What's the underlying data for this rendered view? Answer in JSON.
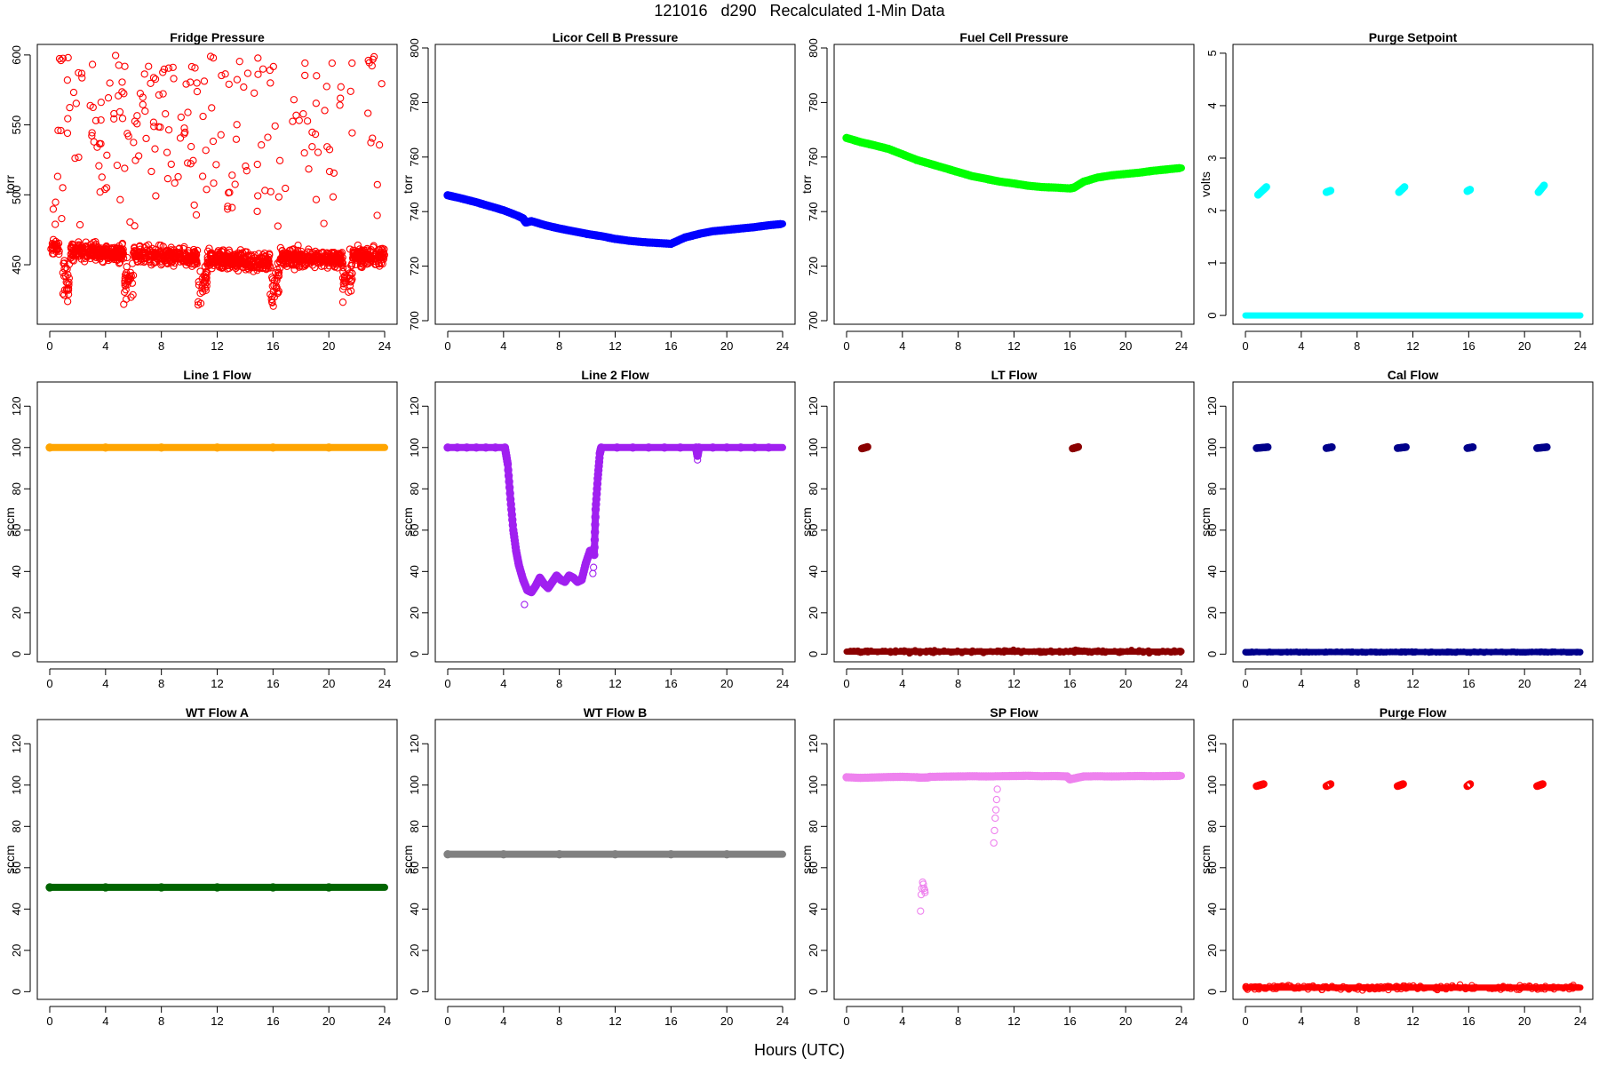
{
  "title": "121016   d290   Recalculated 1-Min Data",
  "xlabel": "Hours (UTC)",
  "chart_data": [
    {
      "id": "fridge-pressure",
      "type": "scatter",
      "title": "Fridge Pressure",
      "ylabel": "torr",
      "color": "#ff0000",
      "marker": "open",
      "xlim": [
        0,
        24
      ],
      "ylim": [
        410,
        605
      ],
      "xticks": [
        0,
        4,
        8,
        12,
        16,
        20,
        24
      ],
      "yticks": [
        450,
        500,
        550,
        600
      ],
      "segments": [
        {
          "x0": 0.0,
          "x1": 0.8,
          "y0": 462,
          "y1": 462,
          "noise": 5,
          "n": 30
        },
        {
          "x0": 0.9,
          "x1": 1.4,
          "y0": 440,
          "y1": 440,
          "noise": 14,
          "n": 25
        },
        {
          "x0": 1.5,
          "x1": 5.3,
          "y0": 460,
          "y1": 458,
          "noise": 6,
          "n": 230
        },
        {
          "x0": 5.3,
          "x1": 6.0,
          "y0": 435,
          "y1": 445,
          "noise": 12,
          "n": 30
        },
        {
          "x0": 6.0,
          "x1": 10.6,
          "y0": 457,
          "y1": 455,
          "noise": 6,
          "n": 270
        },
        {
          "x0": 10.6,
          "x1": 11.3,
          "y0": 432,
          "y1": 445,
          "noise": 14,
          "n": 30
        },
        {
          "x0": 11.3,
          "x1": 15.8,
          "y0": 454,
          "y1": 452,
          "noise": 6,
          "n": 270
        },
        {
          "x0": 15.8,
          "x1": 16.5,
          "y0": 428,
          "y1": 442,
          "noise": 14,
          "n": 30
        },
        {
          "x0": 16.5,
          "x1": 21.0,
          "y0": 455,
          "y1": 454,
          "noise": 6,
          "n": 270
        },
        {
          "x0": 21.0,
          "x1": 21.7,
          "y0": 438,
          "y1": 446,
          "noise": 12,
          "n": 30
        },
        {
          "x0": 21.7,
          "x1": 24.0,
          "y0": 456,
          "y1": 456,
          "noise": 6,
          "n": 140
        }
      ],
      "scatter_cloud": {
        "x0": 0,
        "x1": 24,
        "y0": 470,
        "y1": 600,
        "n": 210
      }
    },
    {
      "id": "licor-cell-b-pressure",
      "type": "line",
      "title": "Licor Cell B Pressure",
      "ylabel": "torr",
      "color": "#0000ff",
      "marker": "filled",
      "xlim": [
        0,
        24
      ],
      "ylim": [
        700,
        800
      ],
      "xticks": [
        0,
        4,
        8,
        12,
        16,
        20,
        24
      ],
      "yticks": [
        700,
        720,
        740,
        760,
        780,
        800
      ],
      "x": [
        0,
        1,
        2,
        3,
        4,
        5,
        5.4,
        5.6,
        6,
        7,
        8,
        9,
        10,
        11,
        12,
        13,
        14,
        15,
        16,
        17,
        18,
        19,
        20,
        21,
        22,
        23,
        24
      ],
      "y": [
        746,
        744.8,
        743.5,
        742,
        740.5,
        738.5,
        737.5,
        736,
        736.5,
        735,
        733.8,
        732.8,
        731.8,
        731,
        730,
        729.3,
        728.8,
        728.5,
        728.2,
        730.5,
        731.8,
        732.8,
        733.3,
        733.8,
        734.3,
        735,
        735.5
      ]
    },
    {
      "id": "fuel-cell-pressure",
      "type": "line",
      "title": "Fuel Cell Pressure",
      "ylabel": "torr",
      "color": "#00ff00",
      "marker": "filled",
      "xlim": [
        0,
        24
      ],
      "ylim": [
        700,
        800
      ],
      "xticks": [
        0,
        4,
        8,
        12,
        16,
        20,
        24
      ],
      "yticks": [
        700,
        720,
        740,
        760,
        780,
        800
      ],
      "x": [
        0,
        1,
        2,
        3,
        4,
        5,
        6,
        7,
        8,
        9,
        10,
        11,
        12,
        13,
        14,
        15,
        16,
        16.3,
        17,
        18,
        19,
        20,
        21,
        22,
        23,
        24
      ],
      "y": [
        767,
        765.5,
        764.3,
        763,
        761,
        759,
        757.5,
        756,
        754.5,
        753,
        752,
        751,
        750.3,
        749.5,
        749,
        748.8,
        748.5,
        748.8,
        751,
        752.5,
        753.3,
        753.8,
        754.3,
        755,
        755.5,
        756
      ]
    },
    {
      "id": "purge-setpoint",
      "type": "scatter",
      "title": "Purge Setpoint",
      "ylabel": "volts",
      "color": "#00ffff",
      "marker": "filled",
      "xlim": [
        0,
        24
      ],
      "ylim": [
        -0.1,
        5.1
      ],
      "xticks": [
        0,
        4,
        8,
        12,
        16,
        20,
        24
      ],
      "yticks": [
        0,
        1,
        2,
        3,
        4,
        5
      ],
      "baseline": {
        "y": 0,
        "noise": 0
      },
      "bursts": [
        {
          "x0": 0.9,
          "x1": 1.5,
          "y0": 2.3,
          "y1": 2.45
        },
        {
          "x0": 5.8,
          "x1": 6.1,
          "y0": 2.35,
          "y1": 2.38
        },
        {
          "x0": 11.0,
          "x1": 11.4,
          "y0": 2.35,
          "y1": 2.45
        },
        {
          "x0": 15.9,
          "x1": 16.1,
          "y0": 2.37,
          "y1": 2.4
        },
        {
          "x0": 21.0,
          "x1": 21.4,
          "y0": 2.35,
          "y1": 2.48
        }
      ]
    },
    {
      "id": "line-1-flow",
      "type": "line",
      "title": "Line 1 Flow",
      "ylabel": "sccm",
      "color": "#ffa500",
      "marker": "filled",
      "xlim": [
        0,
        24
      ],
      "ylim": [
        -2,
        130
      ],
      "xticks": [
        0,
        4,
        8,
        12,
        16,
        20,
        24
      ],
      "yticks": [
        0,
        20,
        40,
        60,
        80,
        100,
        120
      ],
      "x": [
        0,
        24
      ],
      "y": [
        100,
        100
      ]
    },
    {
      "id": "line-2-flow",
      "type": "line",
      "title": "Line 2 Flow",
      "ylabel": "sccm",
      "color": "#a020f0",
      "marker": "filled",
      "xlim": [
        0,
        24
      ],
      "ylim": [
        -2,
        130
      ],
      "xticks": [
        0,
        4,
        8,
        12,
        16,
        20,
        24
      ],
      "yticks": [
        0,
        20,
        40,
        60,
        80,
        100,
        120
      ],
      "x": [
        0,
        4.1,
        4.3,
        4.5,
        4.7,
        4.9,
        5.1,
        5.4,
        5.7,
        6.0,
        6.3,
        6.6,
        6.9,
        7.2,
        7.5,
        7.8,
        8.1,
        8.4,
        8.7,
        9.0,
        9.3,
        9.6,
        9.9,
        10.2,
        10.4,
        10.5,
        10.6,
        10.75,
        10.9,
        11.0,
        17.8,
        17.9,
        18.0,
        24
      ],
      "y": [
        100,
        100,
        92,
        75,
        60,
        50,
        43,
        36,
        31,
        30,
        33,
        37,
        34,
        32,
        35,
        38,
        36,
        35,
        38,
        37,
        35,
        36,
        44,
        50,
        49,
        48,
        70,
        85,
        97,
        100,
        100,
        96,
        100,
        100
      ],
      "outliers": {
        "x": [
          5.5,
          10.4,
          10.45,
          17.9
        ],
        "y": [
          24,
          39,
          42,
          94
        ]
      }
    },
    {
      "id": "lt-flow",
      "type": "scatter",
      "title": "LT Flow",
      "ylabel": "sccm",
      "color": "#8b0000",
      "marker": "filled",
      "xlim": [
        0,
        24
      ],
      "ylim": [
        -2,
        130
      ],
      "xticks": [
        0,
        4,
        8,
        12,
        16,
        20,
        24
      ],
      "yticks": [
        0,
        20,
        40,
        60,
        80,
        100,
        120
      ],
      "baseline": {
        "y": 1.2,
        "noise": 0.6
      },
      "bursts": [
        {
          "x0": 1.1,
          "x1": 1.5,
          "y0": 99.5,
          "y1": 100.3
        },
        {
          "x0": 16.2,
          "x1": 16.6,
          "y0": 99.5,
          "y1": 100.3
        }
      ]
    },
    {
      "id": "cal-flow",
      "type": "scatter",
      "title": "Cal Flow",
      "ylabel": "sccm",
      "color": "#00008b",
      "marker": "filled",
      "xlim": [
        0,
        24
      ],
      "ylim": [
        -2,
        130
      ],
      "xticks": [
        0,
        4,
        8,
        12,
        16,
        20,
        24
      ],
      "yticks": [
        0,
        20,
        40,
        60,
        80,
        100,
        120
      ],
      "baseline": {
        "y": 1.0,
        "noise": 0.2
      },
      "bursts": [
        {
          "x0": 0.8,
          "x1": 1.6,
          "y0": 99.7,
          "y1": 100.2
        },
        {
          "x0": 5.8,
          "x1": 6.2,
          "y0": 99.7,
          "y1": 100.2
        },
        {
          "x0": 10.9,
          "x1": 11.5,
          "y0": 99.7,
          "y1": 100.2
        },
        {
          "x0": 15.9,
          "x1": 16.3,
          "y0": 99.7,
          "y1": 100.2
        },
        {
          "x0": 20.9,
          "x1": 21.6,
          "y0": 99.7,
          "y1": 100.2
        }
      ]
    },
    {
      "id": "wt-flow-a",
      "type": "line",
      "title": "WT Flow A",
      "ylabel": "sccm",
      "color": "#006400",
      "marker": "filled",
      "xlim": [
        0,
        24
      ],
      "ylim": [
        -2,
        130
      ],
      "xticks": [
        0,
        4,
        8,
        12,
        16,
        20,
        24
      ],
      "yticks": [
        0,
        20,
        40,
        60,
        80,
        100,
        120
      ],
      "x": [
        0,
        24
      ],
      "y": [
        50.5,
        50.5
      ]
    },
    {
      "id": "wt-flow-b",
      "type": "line",
      "title": "WT Flow B",
      "ylabel": "sccm",
      "color": "#808080",
      "marker": "filled",
      "xlim": [
        0,
        24
      ],
      "ylim": [
        -2,
        130
      ],
      "xticks": [
        0,
        4,
        8,
        12,
        16,
        20,
        24
      ],
      "yticks": [
        0,
        20,
        40,
        60,
        80,
        100,
        120
      ],
      "x": [
        0,
        24
      ],
      "y": [
        66.5,
        66.5
      ]
    },
    {
      "id": "sp-flow",
      "type": "line",
      "title": "SP Flow",
      "ylabel": "sccm",
      "color": "#ee82ee",
      "marker": "filled",
      "xlim": [
        0,
        24
      ],
      "ylim": [
        -2,
        130
      ],
      "xticks": [
        0,
        4,
        8,
        12,
        16,
        20,
        24
      ],
      "yticks": [
        0,
        20,
        40,
        60,
        80,
        100,
        120
      ],
      "x": [
        0,
        1,
        2,
        3,
        4,
        5,
        5.3,
        5.8,
        6,
        7,
        8,
        9,
        10,
        11,
        12,
        13,
        14,
        15,
        15.8,
        16,
        16.5,
        17,
        18,
        19,
        20,
        21,
        22,
        23,
        24
      ],
      "y": [
        103.8,
        103.5,
        103.7,
        103.9,
        104,
        103.8,
        103.6,
        103.7,
        104,
        104.1,
        104.2,
        104.3,
        104.2,
        104.3,
        104.4,
        104.5,
        104.3,
        104.4,
        104.2,
        102.8,
        103.5,
        104.2,
        104.3,
        104.2,
        104.3,
        104.4,
        104.3,
        104.4,
        104.5
      ],
      "outliers": {
        "x": [
          5.3,
          5.35,
          5.4,
          5.45,
          5.5,
          5.55,
          5.6,
          5.62,
          10.55,
          10.6,
          10.65,
          10.7,
          10.75,
          10.8
        ],
        "y": [
          39,
          47,
          50,
          53,
          52,
          50,
          49,
          48,
          72,
          78,
          84,
          88,
          93,
          98
        ]
      }
    },
    {
      "id": "purge-flow",
      "type": "scatter",
      "title": "Purge Flow",
      "ylabel": "sccm",
      "color": "#ff0000",
      "marker": "open",
      "xlim": [
        0,
        24
      ],
      "ylim": [
        -2,
        130
      ],
      "xticks": [
        0,
        4,
        8,
        12,
        16,
        20,
        24
      ],
      "yticks": [
        0,
        20,
        40,
        60,
        80,
        100,
        120
      ],
      "baseline": {
        "y": 2.0,
        "noise": 1.0
      },
      "bursts": [
        {
          "x0": 0.8,
          "x1": 1.3,
          "y0": 99.5,
          "y1": 100.5
        },
        {
          "x0": 5.8,
          "x1": 6.1,
          "y0": 99.5,
          "y1": 100.5
        },
        {
          "x0": 10.9,
          "x1": 11.3,
          "y0": 99.5,
          "y1": 100.5
        },
        {
          "x0": 15.9,
          "x1": 16.1,
          "y0": 99.5,
          "y1": 100.5
        },
        {
          "x0": 20.9,
          "x1": 21.3,
          "y0": 99.5,
          "y1": 100.5
        }
      ]
    }
  ]
}
